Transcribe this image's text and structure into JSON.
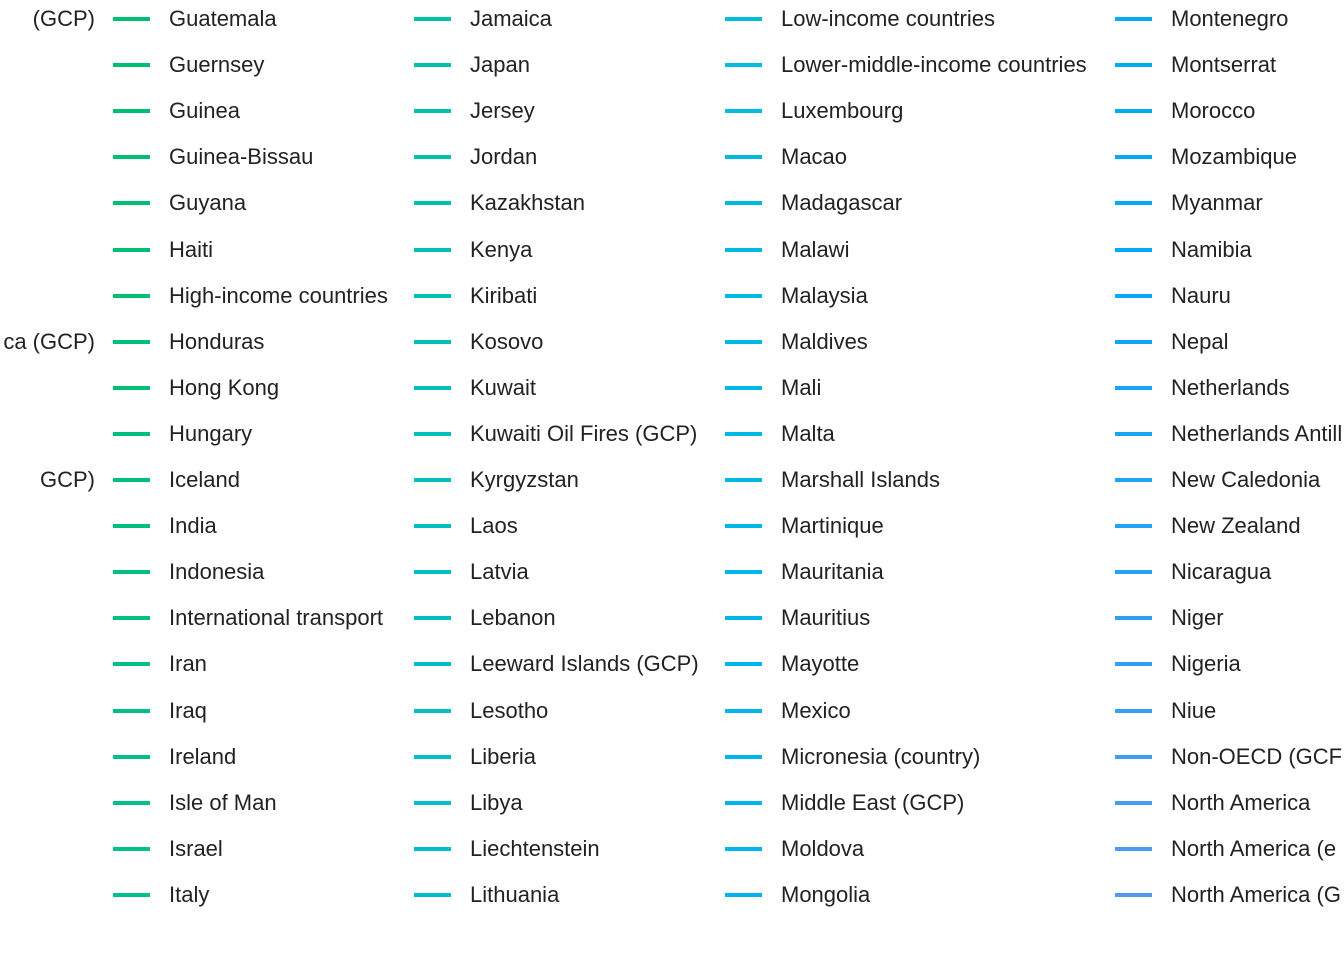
{
  "chart_data": {
    "type": "line",
    "legend_placement": "right",
    "series": [
      {
        "name": "(GCP)",
        "color": "#00ab71"
      },
      {
        "name": "ca (GCP)",
        "color": "#00ab71"
      },
      {
        "name": "GCP)",
        "color": "#00ab71"
      },
      {
        "name": "Guatemala",
        "color": "#00bf74"
      },
      {
        "name": "Guernsey",
        "color": "#00bf74"
      },
      {
        "name": "Guinea",
        "color": "#00bf74"
      },
      {
        "name": "Guinea-Bissau",
        "color": "#00bf74"
      },
      {
        "name": "Guyana",
        "color": "#00bf74"
      },
      {
        "name": "Haiti",
        "color": "#00bf74"
      },
      {
        "name": "High-income countries",
        "color": "#00bf74"
      },
      {
        "name": "Honduras",
        "color": "#00bf76"
      },
      {
        "name": "Hong Kong",
        "color": "#00bf78"
      },
      {
        "name": "Hungary",
        "color": "#00bf7a"
      },
      {
        "name": "Iceland",
        "color": "#00bf7c"
      },
      {
        "name": "India",
        "color": "#00bf7e"
      },
      {
        "name": "Indonesia",
        "color": "#00bf80"
      },
      {
        "name": "International transport",
        "color": "#00bf82"
      },
      {
        "name": "Iran",
        "color": "#00bf84"
      },
      {
        "name": "Iraq",
        "color": "#00bf86"
      },
      {
        "name": "Ireland",
        "color": "#00c088"
      },
      {
        "name": "Isle of Man",
        "color": "#00c08a"
      },
      {
        "name": "Israel",
        "color": "#00c08c"
      },
      {
        "name": "Italy",
        "color": "#00c08e"
      },
      {
        "name": "Jamaica",
        "color": "#00c0a8"
      },
      {
        "name": "Japan",
        "color": "#00c0aa"
      },
      {
        "name": "Jersey",
        "color": "#00c0ac"
      },
      {
        "name": "Jordan",
        "color": "#00c0ae"
      },
      {
        "name": "Kazakhstan",
        "color": "#00c0b0"
      },
      {
        "name": "Kenya",
        "color": "#00c0b2"
      },
      {
        "name": "Kiribati",
        "color": "#00c0b4"
      },
      {
        "name": "Kosovo",
        "color": "#00c0b6"
      },
      {
        "name": "Kuwait",
        "color": "#00c0b8"
      },
      {
        "name": "Kuwaiti Oil Fires (GCP)",
        "color": "#00c0ba"
      },
      {
        "name": "Kyrgyzstan",
        "color": "#00c0bc"
      },
      {
        "name": "Laos",
        "color": "#00c0be"
      },
      {
        "name": "Latvia",
        "color": "#00c0c0"
      },
      {
        "name": "Lebanon",
        "color": "#00c0c2"
      },
      {
        "name": "Leeward Islands (GCP)",
        "color": "#00bfc4"
      },
      {
        "name": "Lesotho",
        "color": "#00bfc6"
      },
      {
        "name": "Liberia",
        "color": "#00bec8"
      },
      {
        "name": "Libya",
        "color": "#00beca"
      },
      {
        "name": "Liechtenstein",
        "color": "#00bdcc"
      },
      {
        "name": "Lithuania",
        "color": "#00bdce"
      },
      {
        "name": "Low-income countries",
        "color": "#00bddc"
      },
      {
        "name": "Lower-middle-income countries",
        "color": "#00bcdd"
      },
      {
        "name": "Luxembourg",
        "color": "#00bcde"
      },
      {
        "name": "Macao",
        "color": "#00bbdf"
      },
      {
        "name": "Madagascar",
        "color": "#00bbe0"
      },
      {
        "name": "Malawi",
        "color": "#00bae1"
      },
      {
        "name": "Malaysia",
        "color": "#00bae2"
      },
      {
        "name": "Maldives",
        "color": "#00b9e3"
      },
      {
        "name": "Mali",
        "color": "#00b9e4"
      },
      {
        "name": "Malta",
        "color": "#00b8e5"
      },
      {
        "name": "Marshall Islands",
        "color": "#00b8e6"
      },
      {
        "name": "Martinique",
        "color": "#00b7e7"
      },
      {
        "name": "Mauritania",
        "color": "#00b7e8"
      },
      {
        "name": "Mauritius",
        "color": "#00b6e9"
      },
      {
        "name": "Mayotte",
        "color": "#00b6ea"
      },
      {
        "name": "Mexico",
        "color": "#00b5eb"
      },
      {
        "name": "Micronesia (country)",
        "color": "#00b5ec"
      },
      {
        "name": "Middle East (GCP)",
        "color": "#00b4ed"
      },
      {
        "name": "Moldova",
        "color": "#00b4ee"
      },
      {
        "name": "Mongolia",
        "color": "#00b3ef"
      },
      {
        "name": "Montenegro",
        "color": "#00adf0"
      },
      {
        "name": "Montserrat",
        "color": "#00acf1"
      },
      {
        "name": "Morocco",
        "color": "#00abf2"
      },
      {
        "name": "Mozambique",
        "color": "#00aaf3"
      },
      {
        "name": "Myanmar",
        "color": "#00a9f4"
      },
      {
        "name": "Namibia",
        "color": "#05a8f4"
      },
      {
        "name": "Nauru",
        "color": "#0aa7f4"
      },
      {
        "name": "Nepal",
        "color": "#10a6f4"
      },
      {
        "name": "Netherlands",
        "color": "#15a5f4"
      },
      {
        "name": "Netherlands Antill",
        "color": "#1aa4f4"
      },
      {
        "name": "New Caledonia",
        "color": "#1fa3f4"
      },
      {
        "name": "New Zealand",
        "color": "#24a2f4"
      },
      {
        "name": "Nicaragua",
        "color": "#29a1f4"
      },
      {
        "name": "Niger",
        "color": "#2ea0f3"
      },
      {
        "name": "Nigeria",
        "color": "#349ff2"
      },
      {
        "name": "Niue",
        "color": "#3a9ef1"
      },
      {
        "name": "Non-OECD (GCF",
        "color": "#409df0"
      },
      {
        "name": "North America",
        "color": "#469cef"
      },
      {
        "name": "North America (e",
        "color": "#4c9bee"
      },
      {
        "name": "North America (G",
        "color": "#529aed"
      }
    ]
  }
}
